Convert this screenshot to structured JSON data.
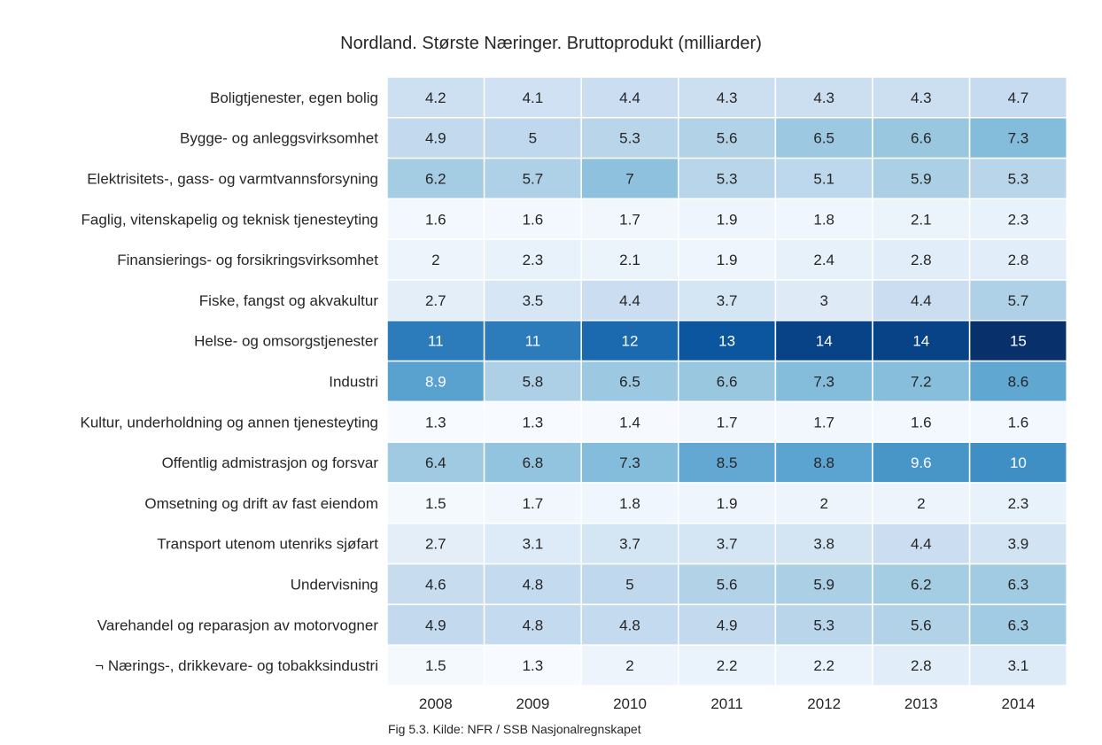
{
  "chart_data": {
    "type": "heatmap",
    "title": "Nordland. Største Næringer. Bruttoprodukt (milliarder)",
    "caption": "Fig 5.3. Kilde: NFR / SSB Nasjonalregnskapet",
    "colormap": "Blues",
    "columns": [
      "2008",
      "2009",
      "2010",
      "2011",
      "2012",
      "2013",
      "2014"
    ],
    "rows": [
      "Boligtjenester, egen bolig",
      "Bygge- og anleggsvirksomhet",
      "Elektrisitets-, gass- og varmtvannsforsyning",
      "Faglig, vitenskapelig og teknisk tjenesteyting",
      "Finansierings- og forsikringsvirksomhet",
      "Fiske, fangst og akvakultur",
      "Helse- og omsorgstjenester",
      "Industri",
      "Kultur, underholdning og annen tjenesteyting",
      "Offentlig admistrasjon og forsvar",
      "Omsetning og drift av fast eiendom",
      "Transport utenom utenriks sjøfart",
      "Undervisning",
      "Varehandel og reparasjon av motorvogner",
      "¬ Nærings-, drikkevare- og tobakksindustri"
    ],
    "cell_labels": [
      [
        "4.2",
        "4.1",
        "4.4",
        "4.3",
        "4.3",
        "4.3",
        "4.7"
      ],
      [
        "4.9",
        "5",
        "5.3",
        "5.6",
        "6.5",
        "6.6",
        "7.3"
      ],
      [
        "6.2",
        "5.7",
        "7",
        "5.3",
        "5.1",
        "5.9",
        "5.3"
      ],
      [
        "1.6",
        "1.6",
        "1.7",
        "1.9",
        "1.8",
        "2.1",
        "2.3"
      ],
      [
        "2",
        "2.3",
        "2.1",
        "1.9",
        "2.4",
        "2.8",
        "2.8"
      ],
      [
        "2.7",
        "3.5",
        "4.4",
        "3.7",
        "3",
        "4.4",
        "5.7"
      ],
      [
        "11",
        "11",
        "12",
        "13",
        "14",
        "14",
        "15"
      ],
      [
        "8.9",
        "5.8",
        "6.5",
        "6.6",
        "7.3",
        "7.2",
        "8.6"
      ],
      [
        "1.3",
        "1.3",
        "1.4",
        "1.7",
        "1.7",
        "1.6",
        "1.6"
      ],
      [
        "6.4",
        "6.8",
        "7.3",
        "8.5",
        "8.8",
        "9.6",
        "10"
      ],
      [
        "1.5",
        "1.7",
        "1.8",
        "1.9",
        "2",
        "2",
        "2.3"
      ],
      [
        "2.7",
        "3.1",
        "3.7",
        "3.7",
        "3.8",
        "4.4",
        "3.9"
      ],
      [
        "4.6",
        "4.8",
        "5",
        "5.6",
        "5.9",
        "6.2",
        "6.3"
      ],
      [
        "4.9",
        "4.8",
        "4.8",
        "4.9",
        "5.3",
        "5.6",
        "6.3"
      ],
      [
        "1.5",
        "1.3",
        "2",
        "2.2",
        "2.2",
        "2.8",
        "3.1"
      ]
    ],
    "value_range": [
      1.3,
      15
    ]
  }
}
